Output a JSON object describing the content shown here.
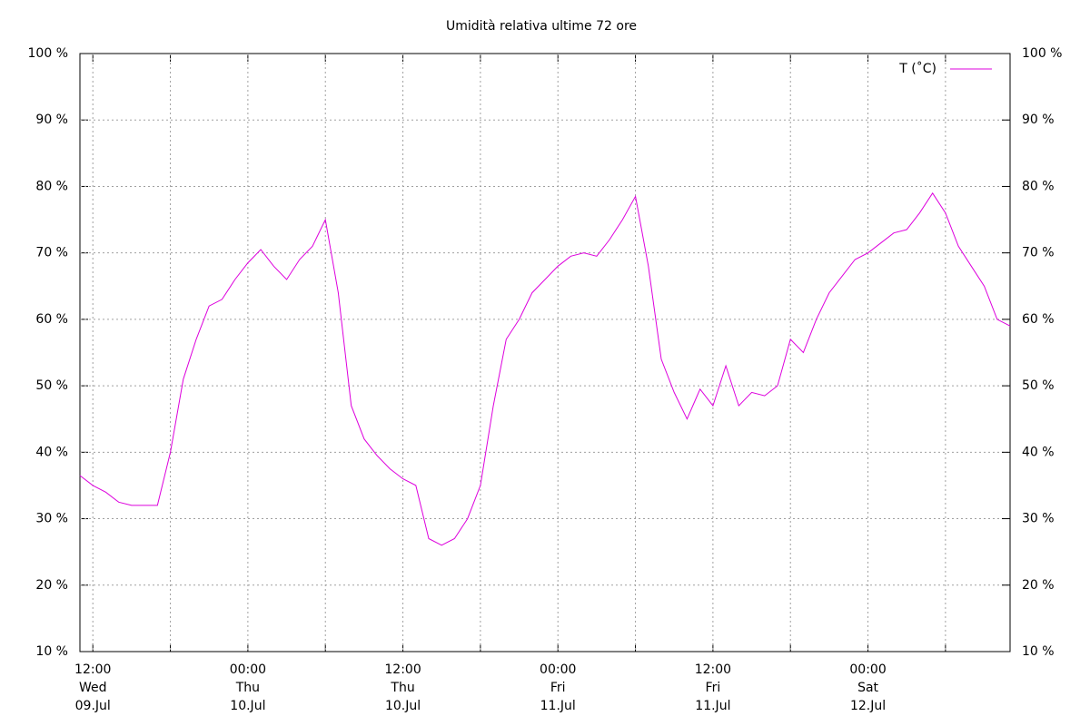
{
  "chart_data": {
    "type": "line",
    "title": "Umidità relativa ultime 72 ore",
    "x": [
      "09.Jul 11:00",
      "09.Jul 12:00",
      "09.Jul 13:00",
      "09.Jul 14:00",
      "09.Jul 15:00",
      "09.Jul 16:00",
      "09.Jul 17:00",
      "09.Jul 18:00",
      "09.Jul 19:00",
      "09.Jul 20:00",
      "09.Jul 21:00",
      "09.Jul 22:00",
      "09.Jul 23:00",
      "10.Jul 00:00",
      "10.Jul 01:00",
      "10.Jul 02:00",
      "10.Jul 03:00",
      "10.Jul 04:00",
      "10.Jul 05:00",
      "10.Jul 06:00",
      "10.Jul 07:00",
      "10.Jul 08:00",
      "10.Jul 09:00",
      "10.Jul 10:00",
      "10.Jul 11:00",
      "10.Jul 12:00",
      "10.Jul 13:00",
      "10.Jul 14:00",
      "10.Jul 15:00",
      "10.Jul 16:00",
      "10.Jul 17:00",
      "10.Jul 18:00",
      "10.Jul 19:00",
      "10.Jul 20:00",
      "10.Jul 21:00",
      "10.Jul 22:00",
      "10.Jul 23:00",
      "11.Jul 00:00",
      "11.Jul 01:00",
      "11.Jul 02:00",
      "11.Jul 03:00",
      "11.Jul 04:00",
      "11.Jul 05:00",
      "11.Jul 06:00",
      "11.Jul 07:00",
      "11.Jul 08:00",
      "11.Jul 09:00",
      "11.Jul 10:00",
      "11.Jul 11:00",
      "11.Jul 12:00",
      "11.Jul 13:00",
      "11.Jul 14:00",
      "11.Jul 15:00",
      "11.Jul 16:00",
      "11.Jul 17:00",
      "11.Jul 18:00",
      "11.Jul 19:00",
      "11.Jul 20:00",
      "11.Jul 21:00",
      "11.Jul 22:00",
      "11.Jul 23:00",
      "12.Jul 00:00",
      "12.Jul 01:00",
      "12.Jul 02:00",
      "12.Jul 03:00",
      "12.Jul 04:00",
      "12.Jul 05:00",
      "12.Jul 06:00",
      "12.Jul 07:00",
      "12.Jul 08:00",
      "12.Jul 09:00",
      "12.Jul 10:00",
      "12.Jul 11:00"
    ],
    "series": [
      {
        "name": "T (˚C)",
        "color": "#dd00dd",
        "values": [
          36.5,
          35,
          34,
          32.5,
          32,
          32,
          32,
          40,
          51,
          57,
          62,
          63,
          66,
          68.5,
          70.5,
          68,
          66,
          69,
          71,
          75,
          64,
          47,
          42,
          39.5,
          37.5,
          36,
          35,
          27,
          26,
          27,
          30,
          35,
          47,
          57,
          60,
          64,
          66,
          68,
          69.5,
          70,
          69.5,
          72,
          75,
          78.5,
          68,
          54,
          49,
          45,
          49.5,
          47,
          53,
          47,
          49,
          48.5,
          50,
          57,
          55,
          60,
          64,
          66.5,
          69,
          70,
          71.5,
          73,
          73.5,
          76,
          79,
          76,
          71,
          68,
          65,
          60,
          59
        ]
      }
    ],
    "xlim": [
      "09.Jul 11:00",
      "12.Jul 11:00"
    ],
    "xticks": [
      {
        "value": "09.Jul 12:00",
        "label": [
          "12:00",
          "Wed",
          "09.Jul"
        ]
      },
      {
        "value": "09.Jul 18:00",
        "label": null
      },
      {
        "value": "10.Jul 00:00",
        "label": [
          "00:00",
          "Thu",
          "10.Jul"
        ]
      },
      {
        "value": "10.Jul 06:00",
        "label": null
      },
      {
        "value": "10.Jul 12:00",
        "label": [
          "12:00",
          "Thu",
          "10.Jul"
        ]
      },
      {
        "value": "10.Jul 18:00",
        "label": null
      },
      {
        "value": "11.Jul 00:00",
        "label": [
          "00:00",
          "Fri",
          "11.Jul"
        ]
      },
      {
        "value": "11.Jul 06:00",
        "label": null
      },
      {
        "value": "11.Jul 12:00",
        "label": [
          "12:00",
          "Fri",
          "11.Jul"
        ]
      },
      {
        "value": "11.Jul 18:00",
        "label": null
      },
      {
        "value": "12.Jul 00:00",
        "label": [
          "00:00",
          "Sat",
          "12.Jul"
        ]
      },
      {
        "value": "12.Jul 06:00",
        "label": null
      }
    ],
    "ylim": [
      10,
      100
    ],
    "yticks": [
      {
        "value": 10,
        "label": "10 %"
      },
      {
        "value": 20,
        "label": "20 %"
      },
      {
        "value": 30,
        "label": "30 %"
      },
      {
        "value": 40,
        "label": "40 %"
      },
      {
        "value": 50,
        "label": "50 %"
      },
      {
        "value": 60,
        "label": "60 %"
      },
      {
        "value": 70,
        "label": "70 %"
      },
      {
        "value": 80,
        "label": "80 %"
      },
      {
        "value": 90,
        "label": "90 %"
      },
      {
        "value": 100,
        "label": "100 %"
      }
    ],
    "y2lim": [
      10,
      100
    ],
    "y2ticks": [
      {
        "value": 10,
        "label": "10 %"
      },
      {
        "value": 20,
        "label": "20 %"
      },
      {
        "value": 30,
        "label": "30 %"
      },
      {
        "value": 40,
        "label": "40 %"
      },
      {
        "value": 50,
        "label": "50 %"
      },
      {
        "value": 60,
        "label": "60 %"
      },
      {
        "value": 70,
        "label": "70 %"
      },
      {
        "value": 80,
        "label": "80 %"
      },
      {
        "value": 90,
        "label": "90 %"
      },
      {
        "value": 100,
        "label": "100 %"
      }
    ],
    "grid": true,
    "legend": "top-right"
  }
}
